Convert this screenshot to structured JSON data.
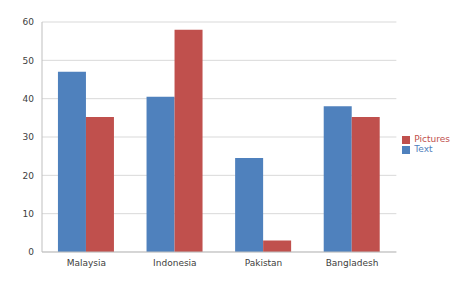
{
  "chart_data": {
    "type": "bar",
    "categories": [
      "Malaysia",
      "Indonesia",
      "Pakistan",
      "Bangladesh"
    ],
    "series": [
      {
        "name": "Text",
        "color": "#4f81bd",
        "values": [
          47,
          40.5,
          24.5,
          38
        ]
      },
      {
        "name": "Pictures",
        "color": "#c0504d",
        "values": [
          35.2,
          58,
          3,
          35.2
        ]
      }
    ],
    "ylim": [
      0,
      60
    ],
    "yticks": [
      0,
      10,
      20,
      30,
      40,
      50,
      60
    ],
    "grid": true,
    "legend": "right"
  }
}
